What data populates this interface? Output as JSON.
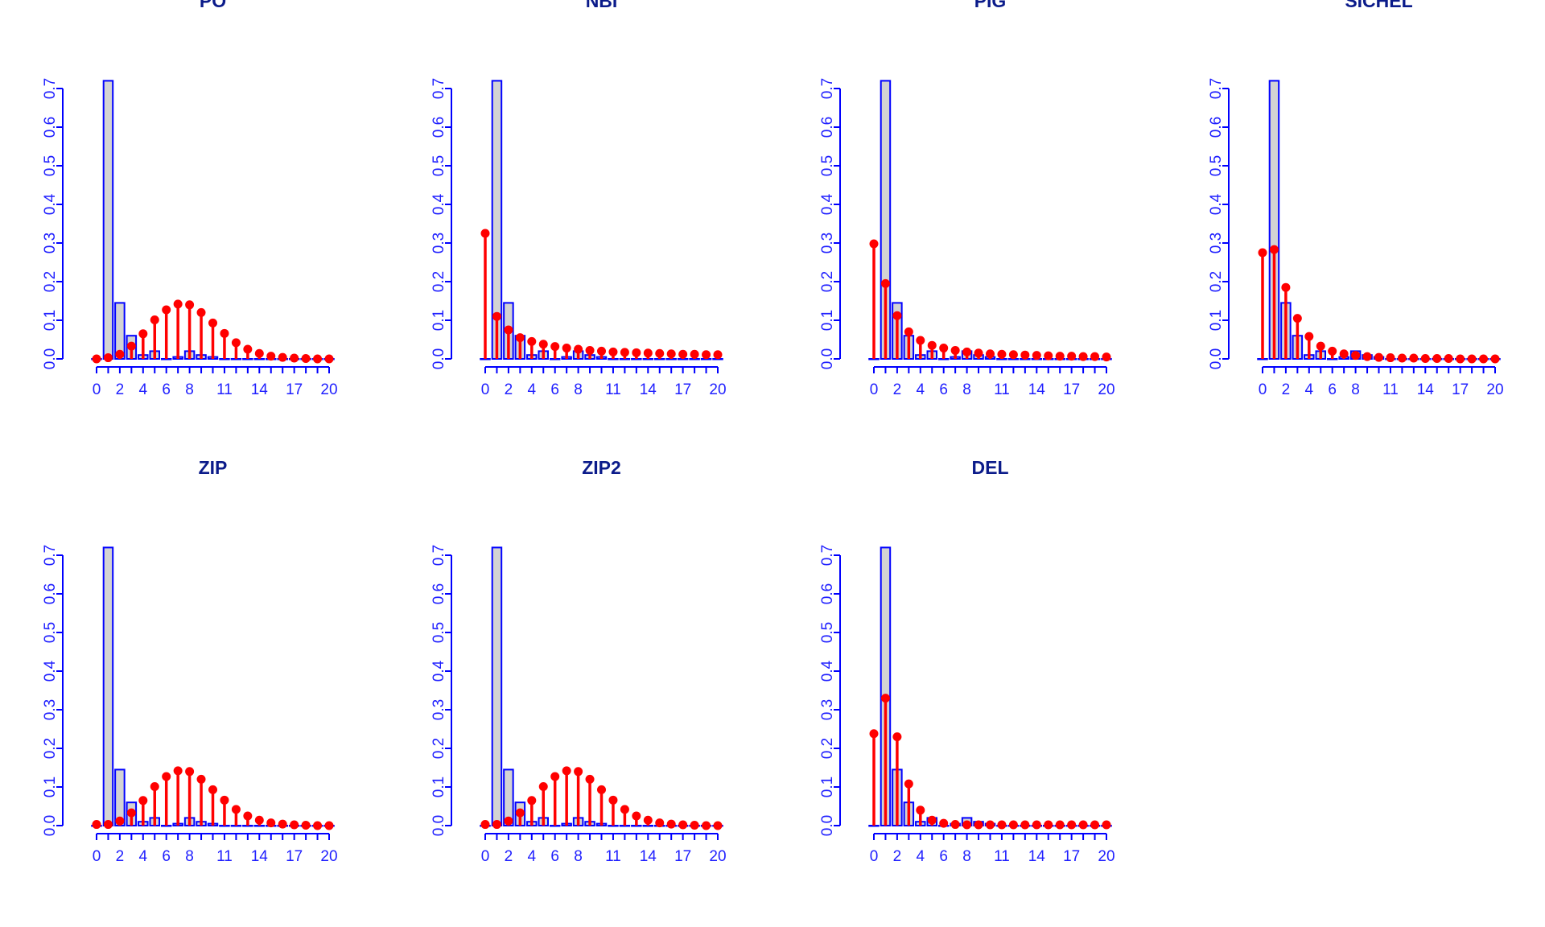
{
  "chart_data": [
    {
      "type": "bar",
      "title": "PO",
      "x": [
        0,
        1,
        2,
        3,
        4,
        5,
        6,
        7,
        8,
        9,
        10,
        11,
        12,
        13,
        14,
        15,
        16,
        17,
        18,
        19,
        20
      ],
      "x_tick_labels": [
        "0",
        "2",
        "4",
        "6",
        "8",
        "11",
        "14",
        "17",
        "20"
      ],
      "ylim": [
        0,
        0.7
      ],
      "y_tick_labels": [
        "0.0",
        "0.1",
        "0.2",
        "0.3",
        "0.4",
        "0.5",
        "0.6",
        "0.7"
      ],
      "series": [
        {
          "values": [
            0.0,
            0.72,
            0.145,
            0.06,
            0.01,
            0.02,
            0.0,
            0.005,
            0.02,
            0.01,
            0.005,
            0,
            0,
            0,
            0,
            0,
            0,
            0,
            0,
            0,
            0
          ],
          "style": "bars",
          "color": "#d3d3d3"
        },
        {
          "values": [
            0.0,
            0.003,
            0.012,
            0.033,
            0.065,
            0.101,
            0.127,
            0.142,
            0.14,
            0.12,
            0.093,
            0.066,
            0.042,
            0.025,
            0.014,
            0.007,
            0.004,
            0.002,
            0.001,
            0.0,
            0.0
          ],
          "style": "stems",
          "color": "#ff0000"
        }
      ]
    },
    {
      "type": "bar",
      "title": "NBI",
      "x": [
        0,
        1,
        2,
        3,
        4,
        5,
        6,
        7,
        8,
        9,
        10,
        11,
        12,
        13,
        14,
        15,
        16,
        17,
        18,
        19,
        20
      ],
      "x_tick_labels": [
        "0",
        "2",
        "4",
        "6",
        "8",
        "11",
        "14",
        "17",
        "20"
      ],
      "ylim": [
        0,
        0.7
      ],
      "y_tick_labels": [
        "0.0",
        "0.1",
        "0.2",
        "0.3",
        "0.4",
        "0.5",
        "0.6",
        "0.7"
      ],
      "series": [
        {
          "values": [
            0.0,
            0.72,
            0.145,
            0.06,
            0.01,
            0.02,
            0.0,
            0.005,
            0.02,
            0.01,
            0.005,
            0,
            0,
            0,
            0,
            0,
            0,
            0,
            0,
            0,
            0
          ],
          "style": "bars",
          "color": "#d3d3d3"
        },
        {
          "values": [
            0.325,
            0.11,
            0.075,
            0.055,
            0.045,
            0.038,
            0.032,
            0.028,
            0.025,
            0.022,
            0.02,
            0.018,
            0.017,
            0.016,
            0.015,
            0.014,
            0.013,
            0.012,
            0.012,
            0.011,
            0.011
          ],
          "style": "stems",
          "color": "#ff0000"
        }
      ]
    },
    {
      "type": "bar",
      "title": "PIG",
      "x": [
        0,
        1,
        2,
        3,
        4,
        5,
        6,
        7,
        8,
        9,
        10,
        11,
        12,
        13,
        14,
        15,
        16,
        17,
        18,
        19,
        20
      ],
      "x_tick_labels": [
        "0",
        "2",
        "4",
        "6",
        "8",
        "11",
        "14",
        "17",
        "20"
      ],
      "ylim": [
        0,
        0.7
      ],
      "y_tick_labels": [
        "0.0",
        "0.1",
        "0.2",
        "0.3",
        "0.4",
        "0.5",
        "0.6",
        "0.7"
      ],
      "series": [
        {
          "values": [
            0.0,
            0.72,
            0.145,
            0.06,
            0.01,
            0.02,
            0.0,
            0.005,
            0.02,
            0.01,
            0.005,
            0,
            0,
            0,
            0,
            0,
            0,
            0,
            0,
            0,
            0
          ],
          "style": "bars",
          "color": "#d3d3d3"
        },
        {
          "values": [
            0.298,
            0.195,
            0.112,
            0.07,
            0.048,
            0.035,
            0.028,
            0.022,
            0.018,
            0.015,
            0.013,
            0.012,
            0.011,
            0.01,
            0.009,
            0.008,
            0.007,
            0.007,
            0.006,
            0.006,
            0.005
          ],
          "style": "stems",
          "color": "#ff0000"
        }
      ]
    },
    {
      "type": "bar",
      "title": "SICHEL",
      "x": [
        0,
        1,
        2,
        3,
        4,
        5,
        6,
        7,
        8,
        9,
        10,
        11,
        12,
        13,
        14,
        15,
        16,
        17,
        18,
        19,
        20
      ],
      "x_tick_labels": [
        "0",
        "2",
        "4",
        "6",
        "8",
        "11",
        "14",
        "17",
        "20"
      ],
      "ylim": [
        0,
        0.7
      ],
      "y_tick_labels": [
        "0.0",
        "0.1",
        "0.2",
        "0.3",
        "0.4",
        "0.5",
        "0.6",
        "0.7"
      ],
      "series": [
        {
          "values": [
            0.0,
            0.72,
            0.145,
            0.06,
            0.01,
            0.02,
            0.0,
            0.005,
            0.02,
            0.01,
            0.005,
            0,
            0,
            0,
            0,
            0,
            0,
            0,
            0,
            0,
            0
          ],
          "style": "bars",
          "color": "#d3d3d3"
        },
        {
          "values": [
            0.275,
            0.283,
            0.185,
            0.105,
            0.058,
            0.033,
            0.02,
            0.013,
            0.009,
            0.006,
            0.004,
            0.003,
            0.002,
            0.002,
            0.001,
            0.001,
            0.001,
            0.0,
            0.0,
            0.0,
            0.0
          ],
          "style": "stems",
          "color": "#ff0000"
        }
      ]
    },
    {
      "type": "bar",
      "title": "ZIP",
      "x": [
        0,
        1,
        2,
        3,
        4,
        5,
        6,
        7,
        8,
        9,
        10,
        11,
        12,
        13,
        14,
        15,
        16,
        17,
        18,
        19,
        20
      ],
      "x_tick_labels": [
        "0",
        "2",
        "4",
        "6",
        "8",
        "11",
        "14",
        "17",
        "20"
      ],
      "ylim": [
        0,
        0.7
      ],
      "y_tick_labels": [
        "0.0",
        "0.1",
        "0.2",
        "0.3",
        "0.4",
        "0.5",
        "0.6",
        "0.7"
      ],
      "series": [
        {
          "values": [
            0.0,
            0.72,
            0.145,
            0.06,
            0.01,
            0.02,
            0.0,
            0.005,
            0.02,
            0.01,
            0.005,
            0,
            0,
            0,
            0,
            0,
            0,
            0,
            0,
            0,
            0
          ],
          "style": "bars",
          "color": "#d3d3d3"
        },
        {
          "values": [
            0.003,
            0.003,
            0.012,
            0.033,
            0.065,
            0.101,
            0.127,
            0.142,
            0.14,
            0.12,
            0.093,
            0.066,
            0.042,
            0.025,
            0.014,
            0.007,
            0.004,
            0.002,
            0.001,
            0.0,
            0.0
          ],
          "style": "stems",
          "color": "#ff0000"
        }
      ]
    },
    {
      "type": "bar",
      "title": "ZIP2",
      "x": [
        0,
        1,
        2,
        3,
        4,
        5,
        6,
        7,
        8,
        9,
        10,
        11,
        12,
        13,
        14,
        15,
        16,
        17,
        18,
        19,
        20
      ],
      "x_tick_labels": [
        "0",
        "2",
        "4",
        "6",
        "8",
        "11",
        "14",
        "17",
        "20"
      ],
      "ylim": [
        0,
        0.7
      ],
      "y_tick_labels": [
        "0.0",
        "0.1",
        "0.2",
        "0.3",
        "0.4",
        "0.5",
        "0.6",
        "0.7"
      ],
      "series": [
        {
          "values": [
            0.0,
            0.72,
            0.145,
            0.06,
            0.01,
            0.02,
            0.0,
            0.005,
            0.02,
            0.01,
            0.005,
            0,
            0,
            0,
            0,
            0,
            0,
            0,
            0,
            0,
            0
          ],
          "style": "bars",
          "color": "#d3d3d3"
        },
        {
          "values": [
            0.003,
            0.003,
            0.012,
            0.033,
            0.065,
            0.101,
            0.127,
            0.142,
            0.14,
            0.12,
            0.093,
            0.066,
            0.042,
            0.025,
            0.014,
            0.007,
            0.004,
            0.002,
            0.001,
            0.0,
            0.0
          ],
          "style": "stems",
          "color": "#ff0000"
        }
      ]
    },
    {
      "type": "bar",
      "title": "DEL",
      "x": [
        0,
        1,
        2,
        3,
        4,
        5,
        6,
        7,
        8,
        9,
        10,
        11,
        12,
        13,
        14,
        15,
        16,
        17,
        18,
        19,
        20
      ],
      "x_tick_labels": [
        "0",
        "2",
        "4",
        "6",
        "8",
        "11",
        "14",
        "17",
        "20"
      ],
      "ylim": [
        0,
        0.7
      ],
      "y_tick_labels": [
        "0.0",
        "0.1",
        "0.2",
        "0.3",
        "0.4",
        "0.5",
        "0.6",
        "0.7"
      ],
      "series": [
        {
          "values": [
            0.0,
            0.72,
            0.145,
            0.06,
            0.01,
            0.02,
            0.0,
            0.005,
            0.02,
            0.01,
            0.005,
            0,
            0,
            0,
            0,
            0,
            0,
            0,
            0,
            0,
            0
          ],
          "style": "bars",
          "color": "#d3d3d3"
        },
        {
          "values": [
            0.238,
            0.33,
            0.23,
            0.108,
            0.04,
            0.014,
            0.006,
            0.003,
            0.002,
            0.002,
            0.002,
            0.002,
            0.002,
            0.002,
            0.002,
            0.002,
            0.002,
            0.002,
            0.002,
            0.002,
            0.002
          ],
          "style": "stems",
          "color": "#ff0000"
        }
      ]
    }
  ]
}
